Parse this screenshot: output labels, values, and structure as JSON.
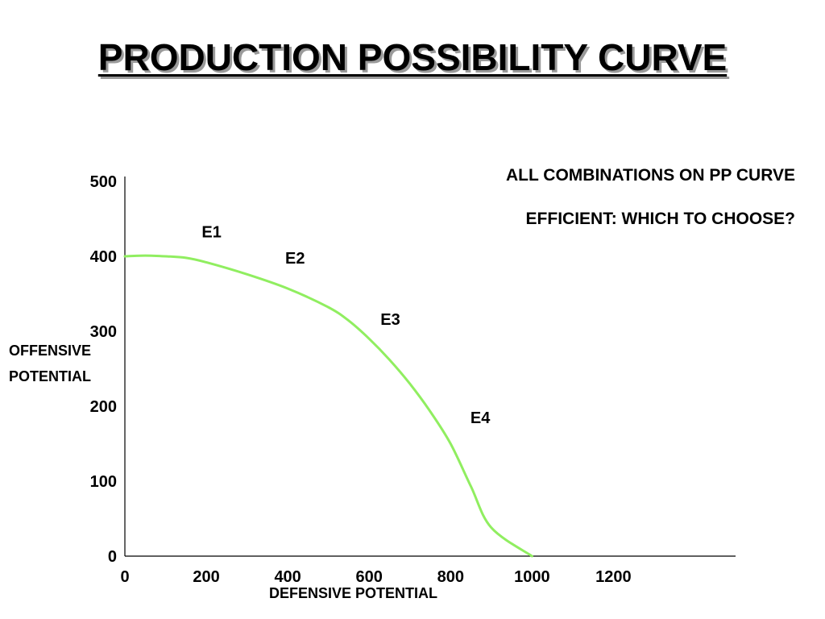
{
  "title": "PRODUCTION POSSIBILITY CURVE",
  "notes": [
    "ALL COMBINATIONS ON PP CURVE",
    "EFFICIENT: WHICH TO CHOOSE?"
  ],
  "chart_data": {
    "type": "line",
    "xlabel": "DEFENSIVE POTENTIAL",
    "ylabel_lines": [
      "OFFENSIVE",
      "POTENTIAL"
    ],
    "xlim": [
      0,
      1500
    ],
    "ylim": [
      0,
      500
    ],
    "x_ticks": [
      0,
      200,
      400,
      600,
      800,
      1000,
      1200
    ],
    "y_ticks": [
      0,
      100,
      200,
      300,
      400,
      500
    ],
    "grid": false,
    "series": [
      {
        "color": "#90ee60",
        "points": [
          [
            0,
            400
          ],
          [
            50,
            401
          ],
          [
            100,
            400
          ],
          [
            150,
            398
          ],
          [
            200,
            392
          ],
          [
            300,
            376
          ],
          [
            400,
            357
          ],
          [
            500,
            332
          ],
          [
            550,
            314
          ],
          [
            600,
            290
          ],
          [
            650,
            262
          ],
          [
            700,
            230
          ],
          [
            750,
            193
          ],
          [
            800,
            150
          ],
          [
            850,
            93
          ],
          [
            900,
            38
          ],
          [
            1000,
            0
          ]
        ]
      }
    ],
    "annotations": [
      {
        "label": "E1",
        "x": 213,
        "y": 433
      },
      {
        "label": "E2",
        "x": 418,
        "y": 398
      },
      {
        "label": "E3",
        "x": 652,
        "y": 316
      },
      {
        "label": "E4",
        "x": 873,
        "y": 185
      }
    ]
  }
}
